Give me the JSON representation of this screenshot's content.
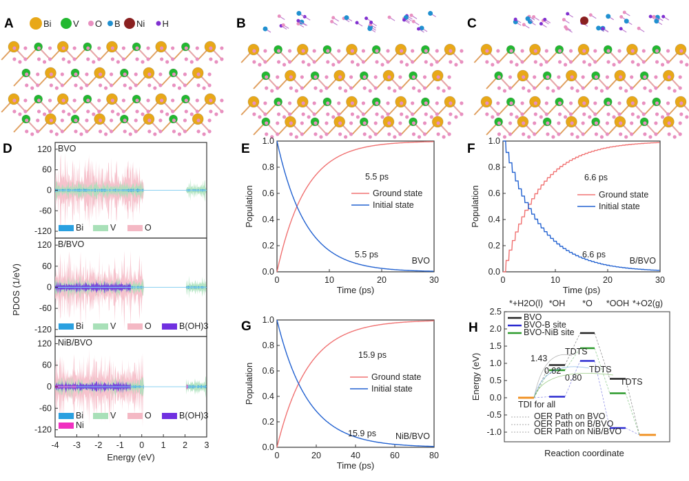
{
  "panels": {
    "A": "A",
    "B": "B",
    "C": "C",
    "D": "D",
    "E": "E",
    "F": "F",
    "G": "G",
    "H": "H"
  },
  "atom_legend": [
    {
      "label": "Bi",
      "color": "#e8a818"
    },
    {
      "label": "V",
      "color": "#22b830"
    },
    {
      "label": "O",
      "color": "#e890c0"
    },
    {
      "label": "B",
      "color": "#2090d0"
    },
    {
      "label": "Ni",
      "color": "#8a2020"
    },
    {
      "label": "H",
      "color": "#8030d0"
    }
  ],
  "chart_data": [
    {
      "panel": "D",
      "type": "area",
      "xlabel": "Energy (eV)",
      "ylabel": "PDOS (1/eV)",
      "xlim": [
        -4,
        3
      ],
      "ylim": [
        -140,
        140
      ],
      "xticks": [
        "-4",
        "-3",
        "-2",
        "-1",
        "0",
        "1",
        "2",
        "3"
      ],
      "yticks": [
        "120",
        "60",
        "0",
        "-60",
        "-120"
      ],
      "subplots": [
        {
          "title": "BVO",
          "legend": [
            "Bi",
            "V",
            "O"
          ]
        },
        {
          "title": "B/BVO",
          "legend": [
            "Bi",
            "V",
            "O",
            "B(OH)3"
          ]
        },
        {
          "title": "NiB/BVO",
          "legend": [
            "Bi",
            "V",
            "O",
            "B(OH)3",
            "Ni"
          ]
        }
      ],
      "series_colors": {
        "Bi": "#2aa0e0",
        "V": "#a8e0b8",
        "O": "#f4b8c4",
        "B(OH)3": "#7030e0",
        "Ni": "#f030c0"
      }
    },
    {
      "panel": "E",
      "type": "line",
      "xlabel": "Time (ps)",
      "ylabel": "Population",
      "xlim": [
        0,
        30
      ],
      "ylim": [
        0,
        1
      ],
      "xticks": [
        "0",
        "10",
        "20",
        "30"
      ],
      "yticks": [
        "0.0",
        "0.2",
        "0.4",
        "0.6",
        "0.8",
        "1.0"
      ],
      "series": [
        {
          "name": "Ground state",
          "color": "#f07070",
          "tau_ps": 5.5,
          "annotation": "5.5 ps"
        },
        {
          "name": "Initial state",
          "color": "#2060d0",
          "tau_ps": 5.5,
          "annotation": "5.5 ps"
        }
      ],
      "system_label": "BVO",
      "stepwise": false
    },
    {
      "panel": "F",
      "type": "line",
      "xlabel": "Time (ps)",
      "ylabel": "Population",
      "xlim": [
        0,
        30
      ],
      "ylim": [
        0,
        1
      ],
      "xticks": [
        "0",
        "10",
        "20",
        "30"
      ],
      "yticks": [
        "0.0",
        "0.2",
        "0.4",
        "0.6",
        "0.8",
        "1.0"
      ],
      "series": [
        {
          "name": "Ground state",
          "color": "#f07070",
          "tau_ps": 6.6,
          "annotation": "6.6 ps"
        },
        {
          "name": "Initial state",
          "color": "#2060d0",
          "tau_ps": 6.6,
          "annotation": "6.6 ps"
        }
      ],
      "system_label": "B/BVO",
      "stepwise": true
    },
    {
      "panel": "G",
      "type": "line",
      "xlabel": "Time (ps)",
      "ylabel": "Population",
      "xlim": [
        0,
        80
      ],
      "ylim": [
        0,
        1
      ],
      "xticks": [
        "0",
        "20",
        "40",
        "60",
        "80"
      ],
      "yticks": [
        "0.0",
        "0.2",
        "0.4",
        "0.6",
        "0.8",
        "1.0"
      ],
      "series": [
        {
          "name": "Ground state",
          "color": "#f07070",
          "tau_ps": 15.9,
          "annotation": "15.9 ps"
        },
        {
          "name": "Initial state",
          "color": "#2060d0",
          "tau_ps": 15.9,
          "annotation": "15.9 ps"
        }
      ],
      "system_label": "NiB/BVO",
      "stepwise": false
    },
    {
      "panel": "H",
      "type": "line",
      "xlabel": "Reaction coordinate",
      "ylabel": "Energy (eV)",
      "ylim": [
        -1.2,
        2.6
      ],
      "yticks": [
        "2.5",
        "2.0",
        "1.5",
        "1.0",
        "0.5",
        "0.0",
        "-0.5",
        "-1.0"
      ],
      "categories": [
        "*+H2O(l)",
        "*OH",
        "*O",
        "*OOH",
        "*+O2(g)"
      ],
      "series": [
        {
          "name": "BVO",
          "color": "#222222",
          "values": [
            0.0,
            0.95,
            1.88,
            0.55,
            -1.08
          ]
        },
        {
          "name": "BVO-B site",
          "color": "#2a2ad0",
          "values": [
            0.0,
            0.03,
            1.07,
            -0.88,
            -1.08
          ]
        },
        {
          "name": "BVO-NiB site",
          "color": "#2a9a2a",
          "values": [
            0.0,
            0.8,
            1.44,
            0.13,
            -1.08
          ]
        }
      ],
      "shared_color": "#f09020",
      "tdi_label": "TDI for all",
      "tdts_label": "TDTS",
      "barriers": [
        {
          "value": "1.43",
          "color": "#999999"
        },
        {
          "value": "0.82",
          "color": "#5a9ad8"
        },
        {
          "value": "0.80",
          "color": "#6ab04a"
        }
      ],
      "path_legend": [
        "OER Path on BVO",
        "OER Path on B/BVO",
        "OER Path on NiB/BVO"
      ]
    }
  ]
}
